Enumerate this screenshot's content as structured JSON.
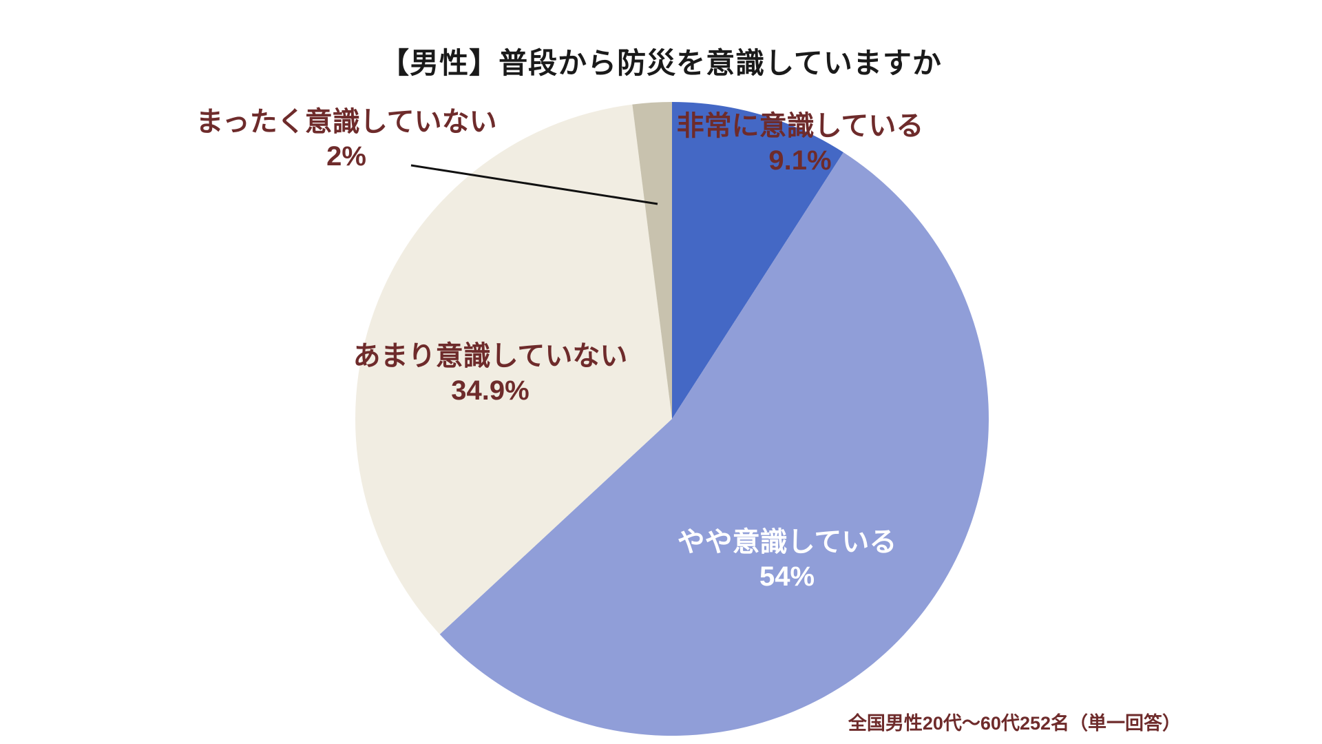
{
  "chart_data": {
    "type": "pie",
    "title": "【男性】普段から防災を意識していますか",
    "categories": [
      "非常に意識している",
      "やや意識している",
      "あまり意識していない",
      "まったく意識していない"
    ],
    "values": [
      9.1,
      54,
      34.9,
      2
    ],
    "value_labels": [
      "9.1%",
      "54%",
      "34.9%",
      "2%"
    ],
    "colors": [
      "#4468c5",
      "#909ed8",
      "#f1ede2",
      "#c8c2ae"
    ],
    "start_angle_deg": -90,
    "direction": "clockwise",
    "legend": "none",
    "source_note": "全国男性20代〜60代252名（単一回答）",
    "title_color": "#1a1a1a",
    "outside_label_color": "#6e2b2b",
    "inside_label_color": "#ffffff",
    "leader_line_color": "#111111"
  }
}
